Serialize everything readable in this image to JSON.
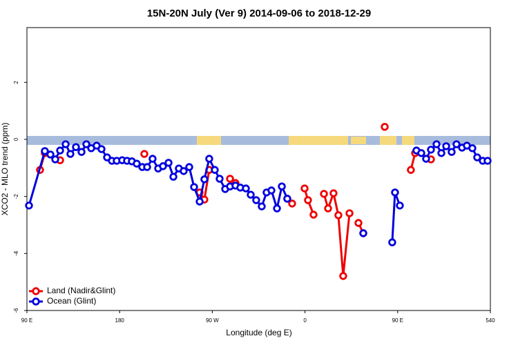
{
  "chart_data": {
    "type": "line",
    "title": "15N-20N July (Ver 9)   2014-09-06 to 2018-12-29",
    "x_label": "Longitude (deg E)",
    "y_label": "XCO2 - MLO trend (ppm)",
    "xlim": [
      90,
      540
    ],
    "xticks": [
      {
        "value": 90,
        "label": "90 E"
      },
      180,
      {
        "value": 270,
        "label": "90 W"
      },
      {
        "value": 360,
        "label": "0"
      },
      {
        "value": 450,
        "label": "90 E"
      },
      540
    ],
    "ylim": [
      -6,
      3.92
    ],
    "yticks": [
      -6,
      -4,
      -2,
      0,
      2
    ],
    "legend": "bottomleft",
    "series": [
      {
        "name": "Land (Nadir&Glint)",
        "color": "#ee0000",
        "x": [
          102.7,
          107.4,
          null,
          122.2,
          null,
          204.0,
          null,
          257.7,
          262.3,
          267.0,
          null,
          287.2,
          292.5,
          null,
          342.8,
          347.5,
          null,
          359.6,
          362.9,
          368.3,
          null,
          378.4,
          382.4,
          387.7,
          392.4,
          397.1,
          403.2,
          null,
          411.9,
          416.6,
          null,
          437.4,
          null,
          462.8,
          466.9,
          null,
          482.3
        ],
        "values": [
          -1.07,
          -0.48,
          null,
          -0.73,
          null,
          -0.51,
          null,
          -1.86,
          -2.11,
          -1.07,
          null,
          -1.38,
          -1.53,
          null,
          -2.08,
          -2.25,
          null,
          -1.72,
          -2.13,
          -2.64,
          null,
          -1.91,
          -2.42,
          -1.89,
          -2.66,
          -4.79,
          -2.59,
          null,
          -2.93,
          -3.29,
          null,
          0.44,
          null,
          -1.07,
          -0.48,
          null,
          -0.7
        ]
      },
      {
        "name": "Ocean (Glint)",
        "color": "#0000dd",
        "x": [
          92.0,
          107.4,
          112.8,
          117.5,
          122.2,
          127.6,
          132.2,
          137.6,
          143.0,
          147.7,
          152.4,
          157.7,
          162.4,
          167.8,
          172.5,
          177.2,
          182.5,
          187.2,
          191.9,
          196.6,
          202.0,
          206.7,
          212.0,
          217.4,
          222.1,
          227.5,
          232.2,
          237.5,
          242.2,
          247.6,
          252.3,
          257.7,
          262.3,
          267.0,
          272.4,
          277.1,
          282.5,
          287.2,
          292.5,
          297.2,
          302.6,
          307.3,
          312.6,
          318.0,
          322.7,
          327.4,
          332.8,
          337.5,
          342.8,
          null,
          416.6,
          null,
          444.7,
          447.4,
          452.1,
          null,
          468.2,
          472.9,
          477.6,
          482.3,
          487.7,
          492.4,
          497.1,
          502.4,
          507.1,
          512.5,
          517.2,
          522.5,
          527.2,
          532.6,
          537.3
        ],
        "values": [
          -2.32,
          -0.41,
          -0.53,
          -0.7,
          -0.39,
          -0.17,
          -0.51,
          -0.27,
          -0.44,
          -0.17,
          -0.31,
          -0.22,
          -0.34,
          -0.63,
          -0.75,
          -0.75,
          -0.73,
          -0.75,
          -0.77,
          -0.85,
          -0.97,
          -0.97,
          -0.68,
          -1.02,
          -0.94,
          -0.82,
          -1.31,
          -1.02,
          -1.11,
          -0.97,
          -1.67,
          -2.18,
          -1.4,
          -0.68,
          -1.07,
          -1.38,
          -1.74,
          -1.65,
          -1.62,
          -1.69,
          -1.72,
          -1.94,
          -2.13,
          -2.35,
          -1.86,
          -1.79,
          -2.42,
          -1.65,
          -2.08,
          null,
          -3.29,
          null,
          -3.61,
          -1.86,
          -2.32,
          null,
          -0.39,
          -0.48,
          -0.68,
          -0.36,
          -0.17,
          -0.48,
          -0.24,
          -0.44,
          -0.17,
          -0.29,
          -0.22,
          -0.31,
          -0.63,
          -0.75,
          -0.75
        ]
      }
    ]
  }
}
